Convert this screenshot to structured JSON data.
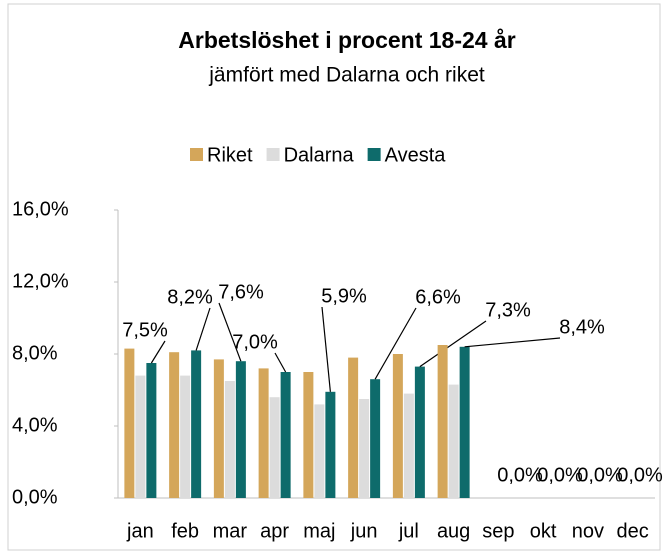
{
  "chart_data": {
    "type": "bar",
    "title": "Arbetslöshet i procent 18-24 år",
    "subtitle": "jämfört med Dalarna och riket",
    "categories": [
      "jan",
      "feb",
      "mar",
      "apr",
      "maj",
      "jun",
      "jul",
      "aug",
      "sep",
      "okt",
      "nov",
      "dec"
    ],
    "series": [
      {
        "name": "Riket",
        "color": "#d4a65a",
        "values": [
          8.3,
          8.1,
          7.7,
          7.2,
          7.0,
          7.8,
          8.0,
          8.5,
          null,
          null,
          null,
          null
        ]
      },
      {
        "name": "Dalarna",
        "color": "#dcdcdc",
        "values": [
          6.8,
          6.8,
          6.5,
          5.6,
          5.2,
          5.5,
          5.8,
          6.3,
          null,
          null,
          null,
          null
        ]
      },
      {
        "name": "Avesta",
        "color": "#0e6b6b",
        "values": [
          7.5,
          8.2,
          7.6,
          7.0,
          5.9,
          6.6,
          7.3,
          8.4,
          0,
          0,
          0,
          0
        ],
        "value_labels": [
          "7,5%",
          "8,2%",
          "7,6%",
          "7,0%",
          "5,9%",
          "6,6%",
          "7,3%",
          "8,4%",
          "0,0%",
          "0,0%",
          "0,0%",
          "0,0%"
        ]
      }
    ],
    "ylim": [
      0,
      16
    ],
    "yticks": [
      {
        "value": 0,
        "label": "0,0%"
      },
      {
        "value": 4,
        "label": "4,0%"
      },
      {
        "value": 8,
        "label": "8,0%"
      },
      {
        "value": 12,
        "label": "12,0%"
      },
      {
        "value": 16,
        "label": "16,0%"
      }
    ],
    "legend": "top",
    "grid": false
  }
}
